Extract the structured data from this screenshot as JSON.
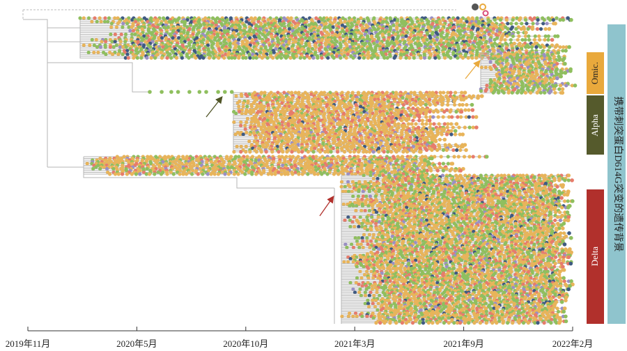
{
  "axis": {
    "ticks": [
      "2019年11月",
      "2020年5月",
      "2020年10月",
      "2021年3月",
      "2021年9月",
      "2022年2月"
    ]
  },
  "clades": [
    {
      "label": "Omic."
    },
    {
      "label": "Alpha"
    },
    {
      "label": "Delta"
    }
  ],
  "side_label": "携带刺突蛋白D614G突变的遗传背景"
}
